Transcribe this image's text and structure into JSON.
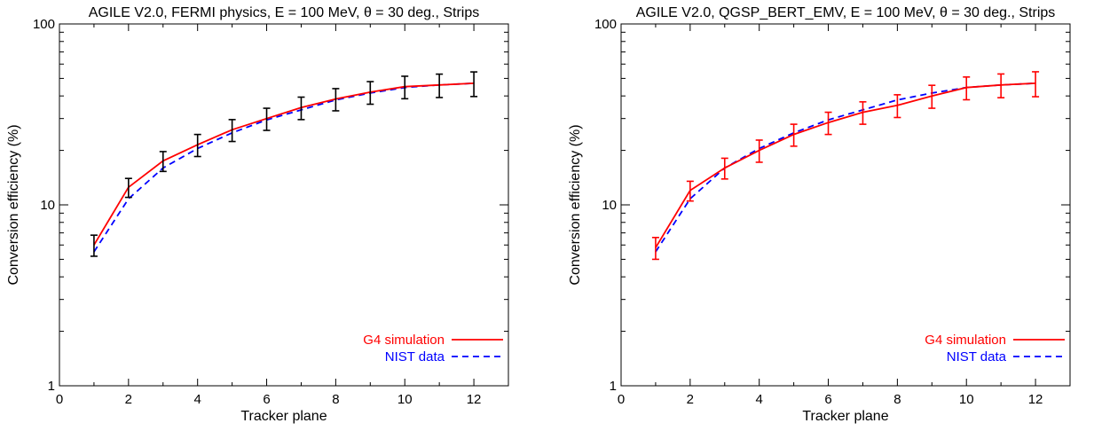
{
  "chart_data": [
    {
      "type": "line",
      "title": "AGILE V2.0, FERMI physics, E = 100 MeV, θ = 30 deg., Strips",
      "xlabel": "Tracker plane",
      "ylabel": "Conversion efficiency (%)",
      "xlim": [
        0,
        13
      ],
      "ylim": [
        1,
        100
      ],
      "yscale": "log",
      "x_ticks": [
        0,
        2,
        4,
        6,
        8,
        10,
        12
      ],
      "x_tick_labels": [
        "0",
        "2",
        "4",
        "6",
        "8",
        "10",
        "12"
      ],
      "y_ticks": [
        1,
        10,
        100
      ],
      "y_tick_labels": [
        "1",
        "10",
        "100"
      ],
      "error_bar_color": "#000000",
      "legend_position": "bottom-right",
      "series": [
        {
          "name": "G4 simulation",
          "color": "#ff0000",
          "style": "solid",
          "x": [
            1,
            2,
            3,
            4,
            5,
            6,
            7,
            8,
            9,
            10,
            11,
            12
          ],
          "values": [
            6.0,
            12.5,
            17.5,
            21.5,
            26.0,
            30.0,
            34.5,
            38.5,
            42.0,
            45.0,
            46.0,
            47.0
          ],
          "errors": [
            0.8,
            1.5,
            2.2,
            3.0,
            3.6,
            4.2,
            4.9,
            5.4,
            6.0,
            6.4,
            6.8,
            7.3
          ]
        },
        {
          "name": "NIST data",
          "color": "#0000ff",
          "style": "dashed",
          "x": [
            1,
            2,
            3,
            4,
            5,
            6,
            7,
            8,
            9,
            10,
            11,
            12
          ],
          "values": [
            5.5,
            10.8,
            16.0,
            20.5,
            25.0,
            29.5,
            33.5,
            38.0,
            41.5,
            44.5,
            46.0,
            47.0
          ]
        }
      ]
    },
    {
      "type": "line",
      "title": "AGILE V2.0, QGSP_BERT_EMV, E = 100 MeV, θ = 30 deg., Strips",
      "xlabel": "Tracker plane",
      "ylabel": "Conversion efficiency (%)",
      "xlim": [
        0,
        13
      ],
      "ylim": [
        1,
        100
      ],
      "yscale": "log",
      "x_ticks": [
        0,
        2,
        4,
        6,
        8,
        10,
        12
      ],
      "x_tick_labels": [
        "0",
        "2",
        "4",
        "6",
        "8",
        "10",
        "12"
      ],
      "y_ticks": [
        1,
        10,
        100
      ],
      "y_tick_labels": [
        "1",
        "10",
        "100"
      ],
      "error_bar_color": "#ff0000",
      "legend_position": "bottom-right",
      "series": [
        {
          "name": "G4 simulation",
          "color": "#ff0000",
          "style": "solid",
          "x": [
            1,
            2,
            3,
            4,
            5,
            6,
            7,
            8,
            9,
            10,
            11,
            12
          ],
          "values": [
            5.8,
            12.0,
            16.0,
            20.0,
            24.5,
            28.5,
            32.5,
            35.5,
            40.0,
            44.5,
            46.0,
            47.0
          ],
          "errors": [
            0.8,
            1.5,
            2.1,
            2.8,
            3.4,
            4.0,
            4.6,
            5.1,
            5.8,
            6.4,
            6.9,
            7.4
          ]
        },
        {
          "name": "NIST data",
          "color": "#0000ff",
          "style": "dashed",
          "x": [
            1,
            2,
            3,
            4,
            5,
            6,
            7,
            8,
            9,
            10,
            11,
            12
          ],
          "values": [
            5.5,
            10.8,
            16.0,
            20.5,
            25.0,
            29.5,
            33.5,
            38.0,
            41.5,
            44.5,
            46.0,
            47.0
          ]
        }
      ]
    }
  ]
}
